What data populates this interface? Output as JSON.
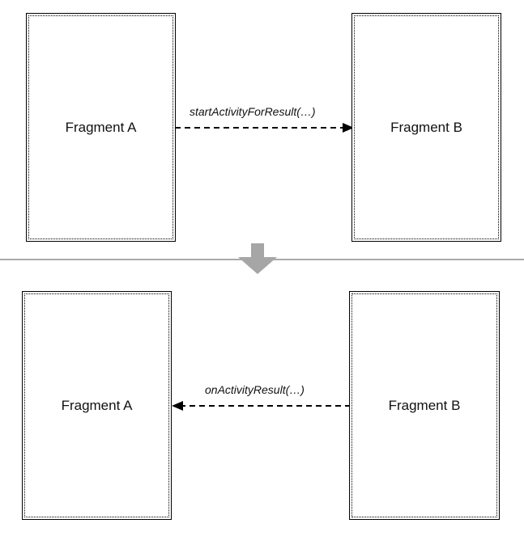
{
  "top_row": {
    "left_box": {
      "label": "Fragment A"
    },
    "right_box": {
      "label": "Fragment B"
    },
    "arrow": {
      "label": "startActivityForResult(…)",
      "direction": "right",
      "style": "dashed"
    }
  },
  "bottom_row": {
    "left_box": {
      "label": "Fragment A"
    },
    "right_box": {
      "label": "Fragment B"
    },
    "arrow": {
      "label": "onActivityResult(…)",
      "direction": "left",
      "style": "dashed"
    }
  },
  "colors": {
    "stroke": "#000000",
    "divider": "#aaaaaa",
    "transition_arrow": "#a6a6a6"
  }
}
